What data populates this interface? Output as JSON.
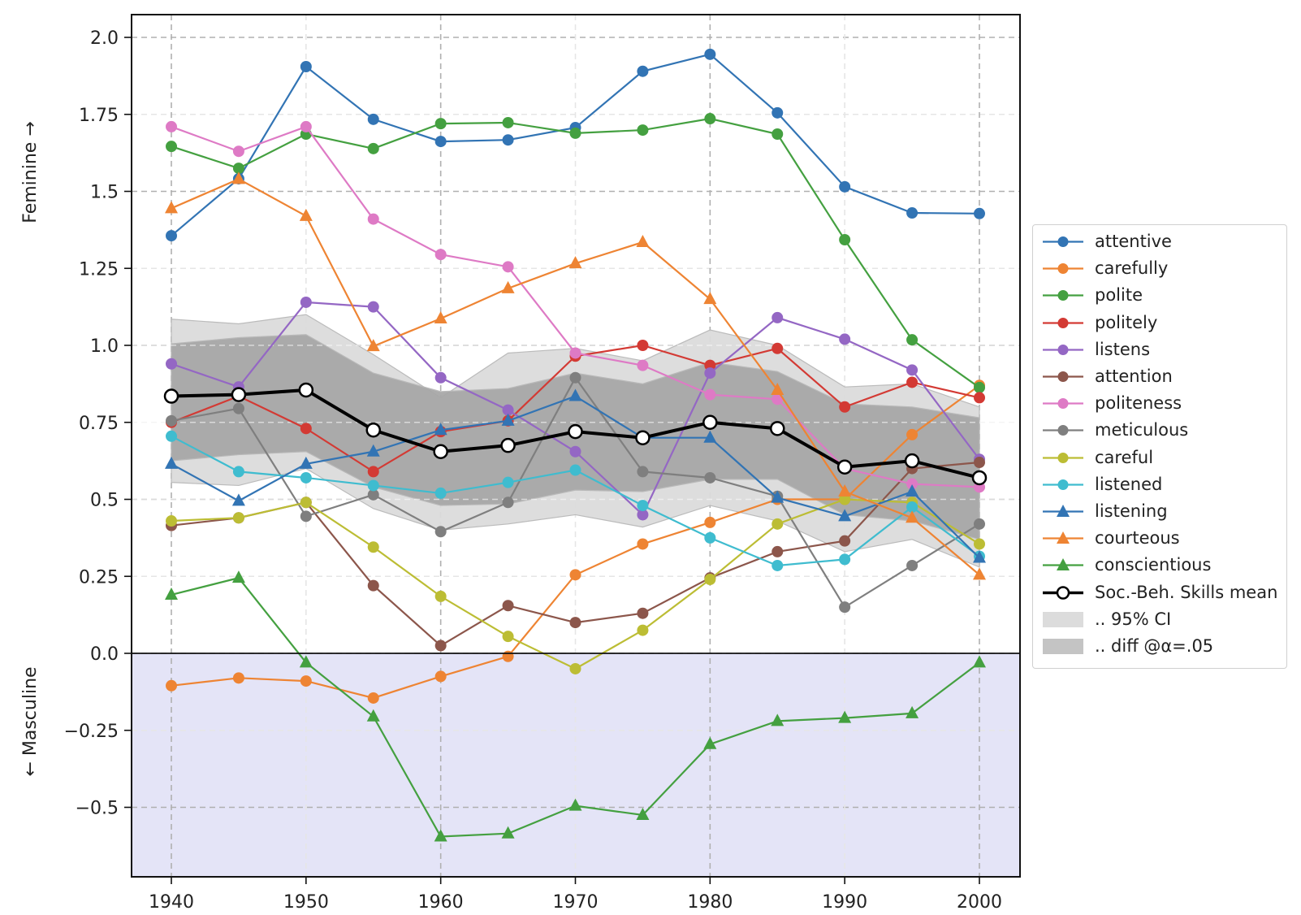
{
  "chart_data": {
    "type": "line",
    "title": "",
    "xlabel": "",
    "ylabel_top": "Feminine →",
    "ylabel_bottom": "← Masculine",
    "xlim": [
      1936.9,
      2003.1
    ],
    "ylim": [
      -0.72,
      2.07
    ],
    "x": [
      1940,
      1945,
      1950,
      1955,
      1960,
      1965,
      1970,
      1975,
      1980,
      1985,
      1990,
      1995,
      2000
    ],
    "x_ticks": [
      1940,
      1950,
      1960,
      1970,
      1980,
      1990,
      2000
    ],
    "x_tick_labels": [
      "1940",
      "1950",
      "1960",
      "1970",
      "1980",
      "1990",
      "2000"
    ],
    "y_ticks": [
      2.0,
      1.75,
      1.5,
      1.25,
      1.0,
      0.75,
      0.5,
      0.25,
      0.0,
      -0.25,
      -0.5
    ],
    "y_tick_labels": [
      "2.0",
      "1.75",
      "1.5",
      "1.25",
      "1.0",
      "0.75",
      "0.5",
      "0.25",
      "0.0",
      "−0.25",
      "−0.5"
    ],
    "grid": true,
    "masculine_region_color": "#e4e4f7",
    "legend_position": "center-right outside",
    "series": [
      {
        "name": "attentive",
        "color": "#3274b4",
        "marker": "circle",
        "values": [
          1.356,
          1.541,
          1.905,
          1.734,
          1.662,
          1.667,
          1.707,
          1.89,
          1.945,
          1.755,
          1.515,
          1.43,
          1.428
        ]
      },
      {
        "name": "carefully",
        "color": "#ee8433",
        "marker": "circle",
        "values": [
          -0.105,
          -0.08,
          -0.09,
          -0.145,
          -0.075,
          -0.01,
          0.255,
          0.355,
          0.425,
          0.5,
          0.5,
          0.71,
          0.87
        ]
      },
      {
        "name": "polite",
        "color": "#44a040",
        "marker": "circle",
        "values": [
          1.646,
          1.575,
          1.686,
          1.639,
          1.72,
          1.723,
          1.689,
          1.699,
          1.736,
          1.686,
          1.343,
          1.018,
          0.863
        ]
      },
      {
        "name": "politely",
        "color": "#d33a34",
        "marker": "circle",
        "values": [
          0.75,
          0.835,
          0.73,
          0.59,
          0.72,
          0.755,
          0.965,
          1.0,
          0.935,
          0.99,
          0.8,
          0.88,
          0.83
        ]
      },
      {
        "name": "listens",
        "color": "#9467c4",
        "marker": "circle",
        "values": [
          0.94,
          0.865,
          1.14,
          1.125,
          0.895,
          0.79,
          0.655,
          0.45,
          0.91,
          1.09,
          1.02,
          0.92,
          0.63
        ]
      },
      {
        "name": "attention",
        "color": "#8c564b",
        "marker": "circle",
        "values": [
          0.415,
          0.44,
          0.49,
          0.22,
          0.025,
          0.155,
          0.1,
          0.13,
          0.245,
          0.33,
          0.365,
          0.6,
          0.62
        ]
      },
      {
        "name": "politeness",
        "color": "#de7ac5",
        "marker": "circle",
        "values": [
          1.71,
          1.63,
          1.71,
          1.41,
          1.295,
          1.255,
          0.975,
          0.935,
          0.84,
          0.825,
          0.6,
          0.55,
          0.54
        ]
      },
      {
        "name": "meticulous",
        "color": "#7f7f7f",
        "marker": "circle",
        "values": [
          0.755,
          0.795,
          0.445,
          0.515,
          0.395,
          0.49,
          0.895,
          0.59,
          0.57,
          0.51,
          0.15,
          0.285,
          0.42
        ]
      },
      {
        "name": "careful",
        "color": "#bcbd34",
        "marker": "circle",
        "values": [
          0.43,
          0.44,
          0.49,
          0.345,
          0.185,
          0.055,
          -0.05,
          0.075,
          0.24,
          0.42,
          0.5,
          0.49,
          0.355
        ]
      },
      {
        "name": "listened",
        "color": "#3fbccf",
        "marker": "circle",
        "values": [
          0.705,
          0.59,
          0.57,
          0.545,
          0.52,
          0.555,
          0.595,
          0.48,
          0.375,
          0.285,
          0.305,
          0.475,
          0.315
        ]
      },
      {
        "name": "listening",
        "color": "#3274b4",
        "marker": "triangle",
        "values": [
          0.615,
          0.495,
          0.615,
          0.655,
          0.725,
          0.755,
          0.835,
          0.7,
          0.7,
          0.505,
          0.445,
          0.525,
          0.31
        ]
      },
      {
        "name": "courteous",
        "color": "#ee8433",
        "marker": "triangle",
        "values": [
          1.445,
          1.54,
          1.42,
          0.997,
          1.087,
          1.185,
          1.266,
          1.335,
          1.15,
          0.855,
          0.525,
          0.44,
          0.255
        ]
      },
      {
        "name": "conscientious",
        "color": "#44a040",
        "marker": "triangle",
        "values": [
          0.19,
          0.245,
          -0.03,
          -0.205,
          -0.595,
          -0.585,
          -0.495,
          -0.525,
          -0.295,
          -0.22,
          -0.21,
          -0.195,
          -0.03
        ]
      }
    ],
    "mean": {
      "name": "Soc.-Beh. Skills mean",
      "color": "#000000",
      "values": [
        0.835,
        0.84,
        0.855,
        0.725,
        0.655,
        0.675,
        0.72,
        0.7,
        0.75,
        0.73,
        0.605,
        0.625,
        0.57
      ]
    },
    "ci95": {
      "name": ".. 95% CI",
      "color": "#d9d9d9",
      "upper": [
        1.085,
        1.07,
        1.1,
        0.97,
        0.83,
        0.975,
        0.99,
        0.95,
        1.05,
        1.0,
        0.865,
        0.875,
        0.8
      ],
      "lower": [
        0.555,
        0.545,
        0.6,
        0.47,
        0.4,
        0.42,
        0.45,
        0.41,
        0.48,
        0.43,
        0.33,
        0.37,
        0.28
      ]
    },
    "diff": {
      "name": ".. diff @α=.05",
      "color": "#a9a9a9",
      "upper": [
        1.005,
        1.025,
        1.035,
        0.91,
        0.85,
        0.86,
        0.91,
        0.875,
        0.945,
        0.915,
        0.81,
        0.8,
        0.765
      ],
      "lower": [
        0.625,
        0.645,
        0.655,
        0.54,
        0.48,
        0.485,
        0.53,
        0.525,
        0.565,
        0.565,
        0.45,
        0.43,
        0.37
      ]
    }
  }
}
